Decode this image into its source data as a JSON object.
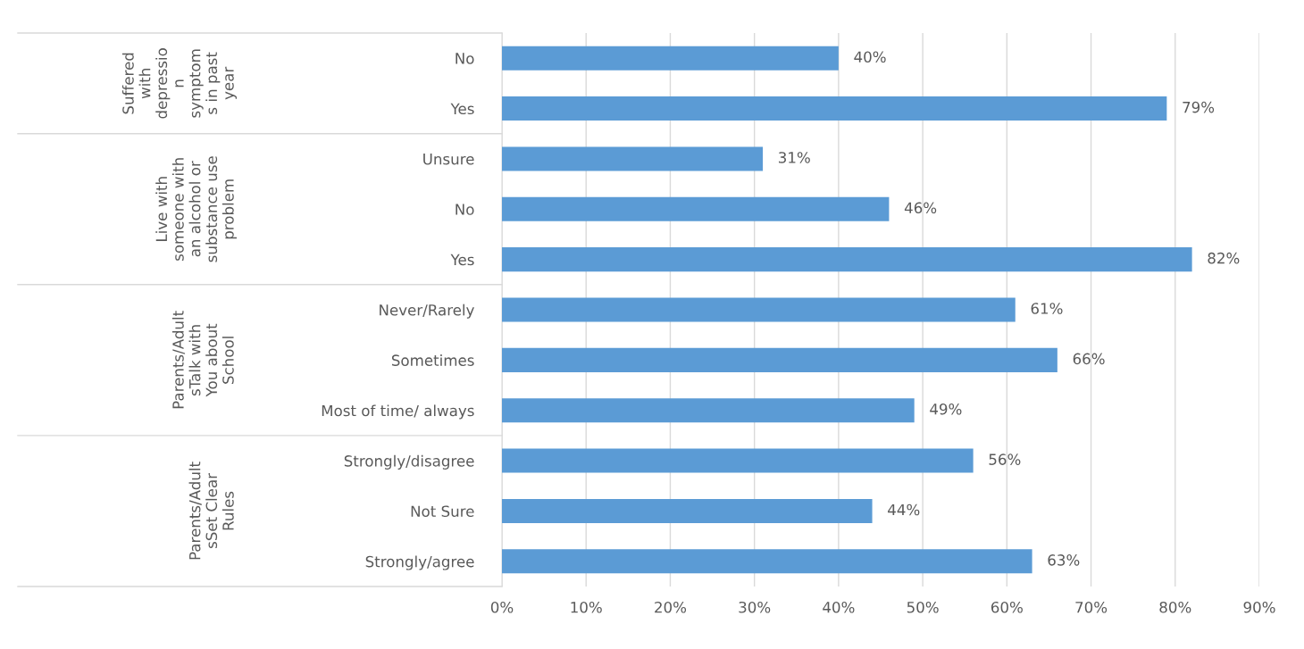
{
  "chart_data": {
    "type": "bar",
    "orientation": "horizontal",
    "categories": [
      "No",
      "Yes",
      "Unsure",
      "No",
      "Yes",
      "Never/Rarely",
      "Sometimes",
      "Most of time/ always",
      "Strongly/disagree",
      "Not Sure",
      "Strongly/agree"
    ],
    "annotations": [
      "Suffered\nwith\ndepressio\nn\nsymptom\ns in past\nyear",
      "Live with\nsomeone with\nan alcohol or\nsubstance use\nproblem",
      "Parents/Adult\nsTalk with\nYou about\nSchool",
      "Parents/Adult\nsSet Clear\nRules"
    ],
    "values": [
      40,
      79,
      31,
      46,
      82,
      61,
      66,
      49,
      56,
      44,
      63
    ],
    "value_labels": [
      "40%",
      "79%",
      "31%",
      "46%",
      "82%",
      "61%",
      "66%",
      "49%",
      "56%",
      "44%",
      "63%"
    ],
    "color": "#5b9bd5",
    "xlim": [
      0,
      90
    ],
    "xticks": [
      {
        "value": 0,
        "label": "0%"
      },
      {
        "value": 10,
        "label": "10%"
      },
      {
        "value": 20,
        "label": "20%"
      },
      {
        "value": 30,
        "label": "30%"
      },
      {
        "value": 40,
        "label": "40%"
      },
      {
        "value": 50,
        "label": "50%"
      },
      {
        "value": 60,
        "label": "60%"
      },
      {
        "value": 70,
        "label": "70%"
      },
      {
        "value": 80,
        "label": "80%"
      },
      {
        "value": 90,
        "label": "90%"
      }
    ],
    "grid": "x",
    "legend": false
  }
}
